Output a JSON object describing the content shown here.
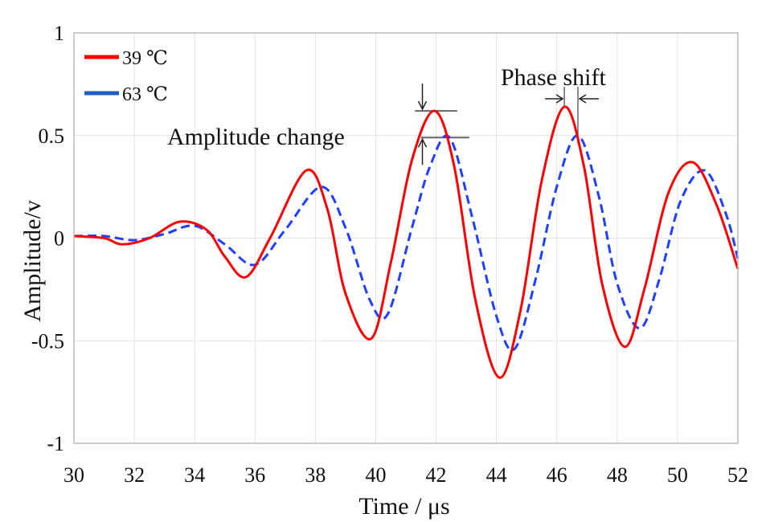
{
  "chart_data": {
    "type": "line",
    "xlabel": "Time / μs",
    "ylabel": "Amplitude/v",
    "xlim": [
      30,
      52
    ],
    "ylim": [
      -1,
      1
    ],
    "xticks": [
      "30",
      "32",
      "34",
      "36",
      "38",
      "40",
      "42",
      "44",
      "46",
      "48",
      "50",
      "52"
    ],
    "yticks": [
      "1",
      "0.5",
      "0",
      "-0.5",
      "-1"
    ],
    "grid": true,
    "legend_position": "top-left",
    "series": [
      {
        "name": "39 ℃",
        "color": "#ff0000",
        "style": "solid",
        "points": [
          [
            30,
            0.01
          ],
          [
            31,
            0.0
          ],
          [
            31.6,
            -0.03
          ],
          [
            32.5,
            0.0
          ],
          [
            33.5,
            0.08
          ],
          [
            34.4,
            0.04
          ],
          [
            35,
            -0.09
          ],
          [
            35.7,
            -0.19
          ],
          [
            36.5,
            0.0
          ],
          [
            37.7,
            0.33
          ],
          [
            38.4,
            0.14
          ],
          [
            39,
            -0.27
          ],
          [
            39.85,
            -0.49
          ],
          [
            40.5,
            -0.12
          ],
          [
            41.2,
            0.38
          ],
          [
            41.95,
            0.62
          ],
          [
            42.6,
            0.35
          ],
          [
            43.3,
            -0.3
          ],
          [
            44.1,
            -0.68
          ],
          [
            44.8,
            -0.35
          ],
          [
            45.5,
            0.28
          ],
          [
            46.25,
            0.64
          ],
          [
            46.9,
            0.35
          ],
          [
            47.5,
            -0.22
          ],
          [
            48.25,
            -0.53
          ],
          [
            48.9,
            -0.25
          ],
          [
            49.7,
            0.22
          ],
          [
            50.5,
            0.37
          ],
          [
            51.3,
            0.16
          ],
          [
            52,
            -0.15
          ]
        ]
      },
      {
        "name": "63 ℃",
        "color": "#1f3fff",
        "style": "dashed",
        "points": [
          [
            30,
            0.01
          ],
          [
            31,
            0.01
          ],
          [
            32,
            -0.01
          ],
          [
            33,
            0.02
          ],
          [
            34,
            0.06
          ],
          [
            35,
            -0.03
          ],
          [
            36,
            -0.13
          ],
          [
            37,
            0.04
          ],
          [
            38.2,
            0.25
          ],
          [
            39,
            0.05
          ],
          [
            39.8,
            -0.3
          ],
          [
            40.4,
            -0.37
          ],
          [
            41.2,
            0.05
          ],
          [
            41.8,
            0.35
          ],
          [
            42.45,
            0.49
          ],
          [
            43.2,
            0.1
          ],
          [
            44,
            -0.38
          ],
          [
            44.6,
            -0.54
          ],
          [
            45.3,
            -0.2
          ],
          [
            46,
            0.25
          ],
          [
            46.7,
            0.5
          ],
          [
            47.4,
            0.2
          ],
          [
            48,
            -0.22
          ],
          [
            48.75,
            -0.44
          ],
          [
            49.4,
            -0.2
          ],
          [
            50.1,
            0.18
          ],
          [
            50.9,
            0.33
          ],
          [
            51.6,
            0.12
          ],
          [
            52,
            -0.1
          ]
        ]
      }
    ],
    "annotations": [
      {
        "text": "Amplitude change"
      },
      {
        "text": "Phase shift"
      }
    ]
  }
}
